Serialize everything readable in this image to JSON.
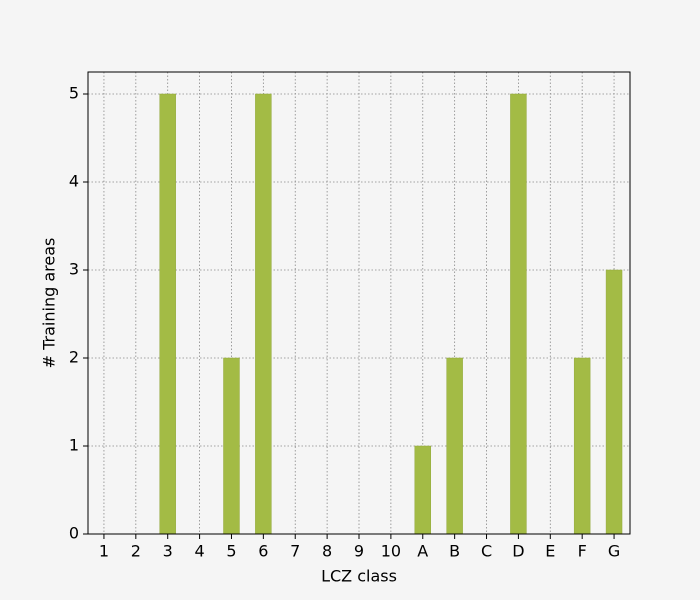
{
  "chart_data": {
    "type": "bar",
    "x_label": "LCZ class",
    "y_label": "# Training areas",
    "categories": [
      "1",
      "2",
      "3",
      "4",
      "5",
      "6",
      "7",
      "8",
      "9",
      "10",
      "A",
      "B",
      "C",
      "D",
      "E",
      "F",
      "G"
    ],
    "values": [
      0,
      0,
      5,
      0,
      2,
      5,
      0,
      0,
      0,
      0,
      1,
      2,
      0,
      5,
      0,
      2,
      3
    ],
    "color": "#a3bb45",
    "ylim": [
      0,
      5.25
    ],
    "yticks": [
      0,
      1,
      2,
      3,
      4,
      5
    ],
    "grid": true
  }
}
